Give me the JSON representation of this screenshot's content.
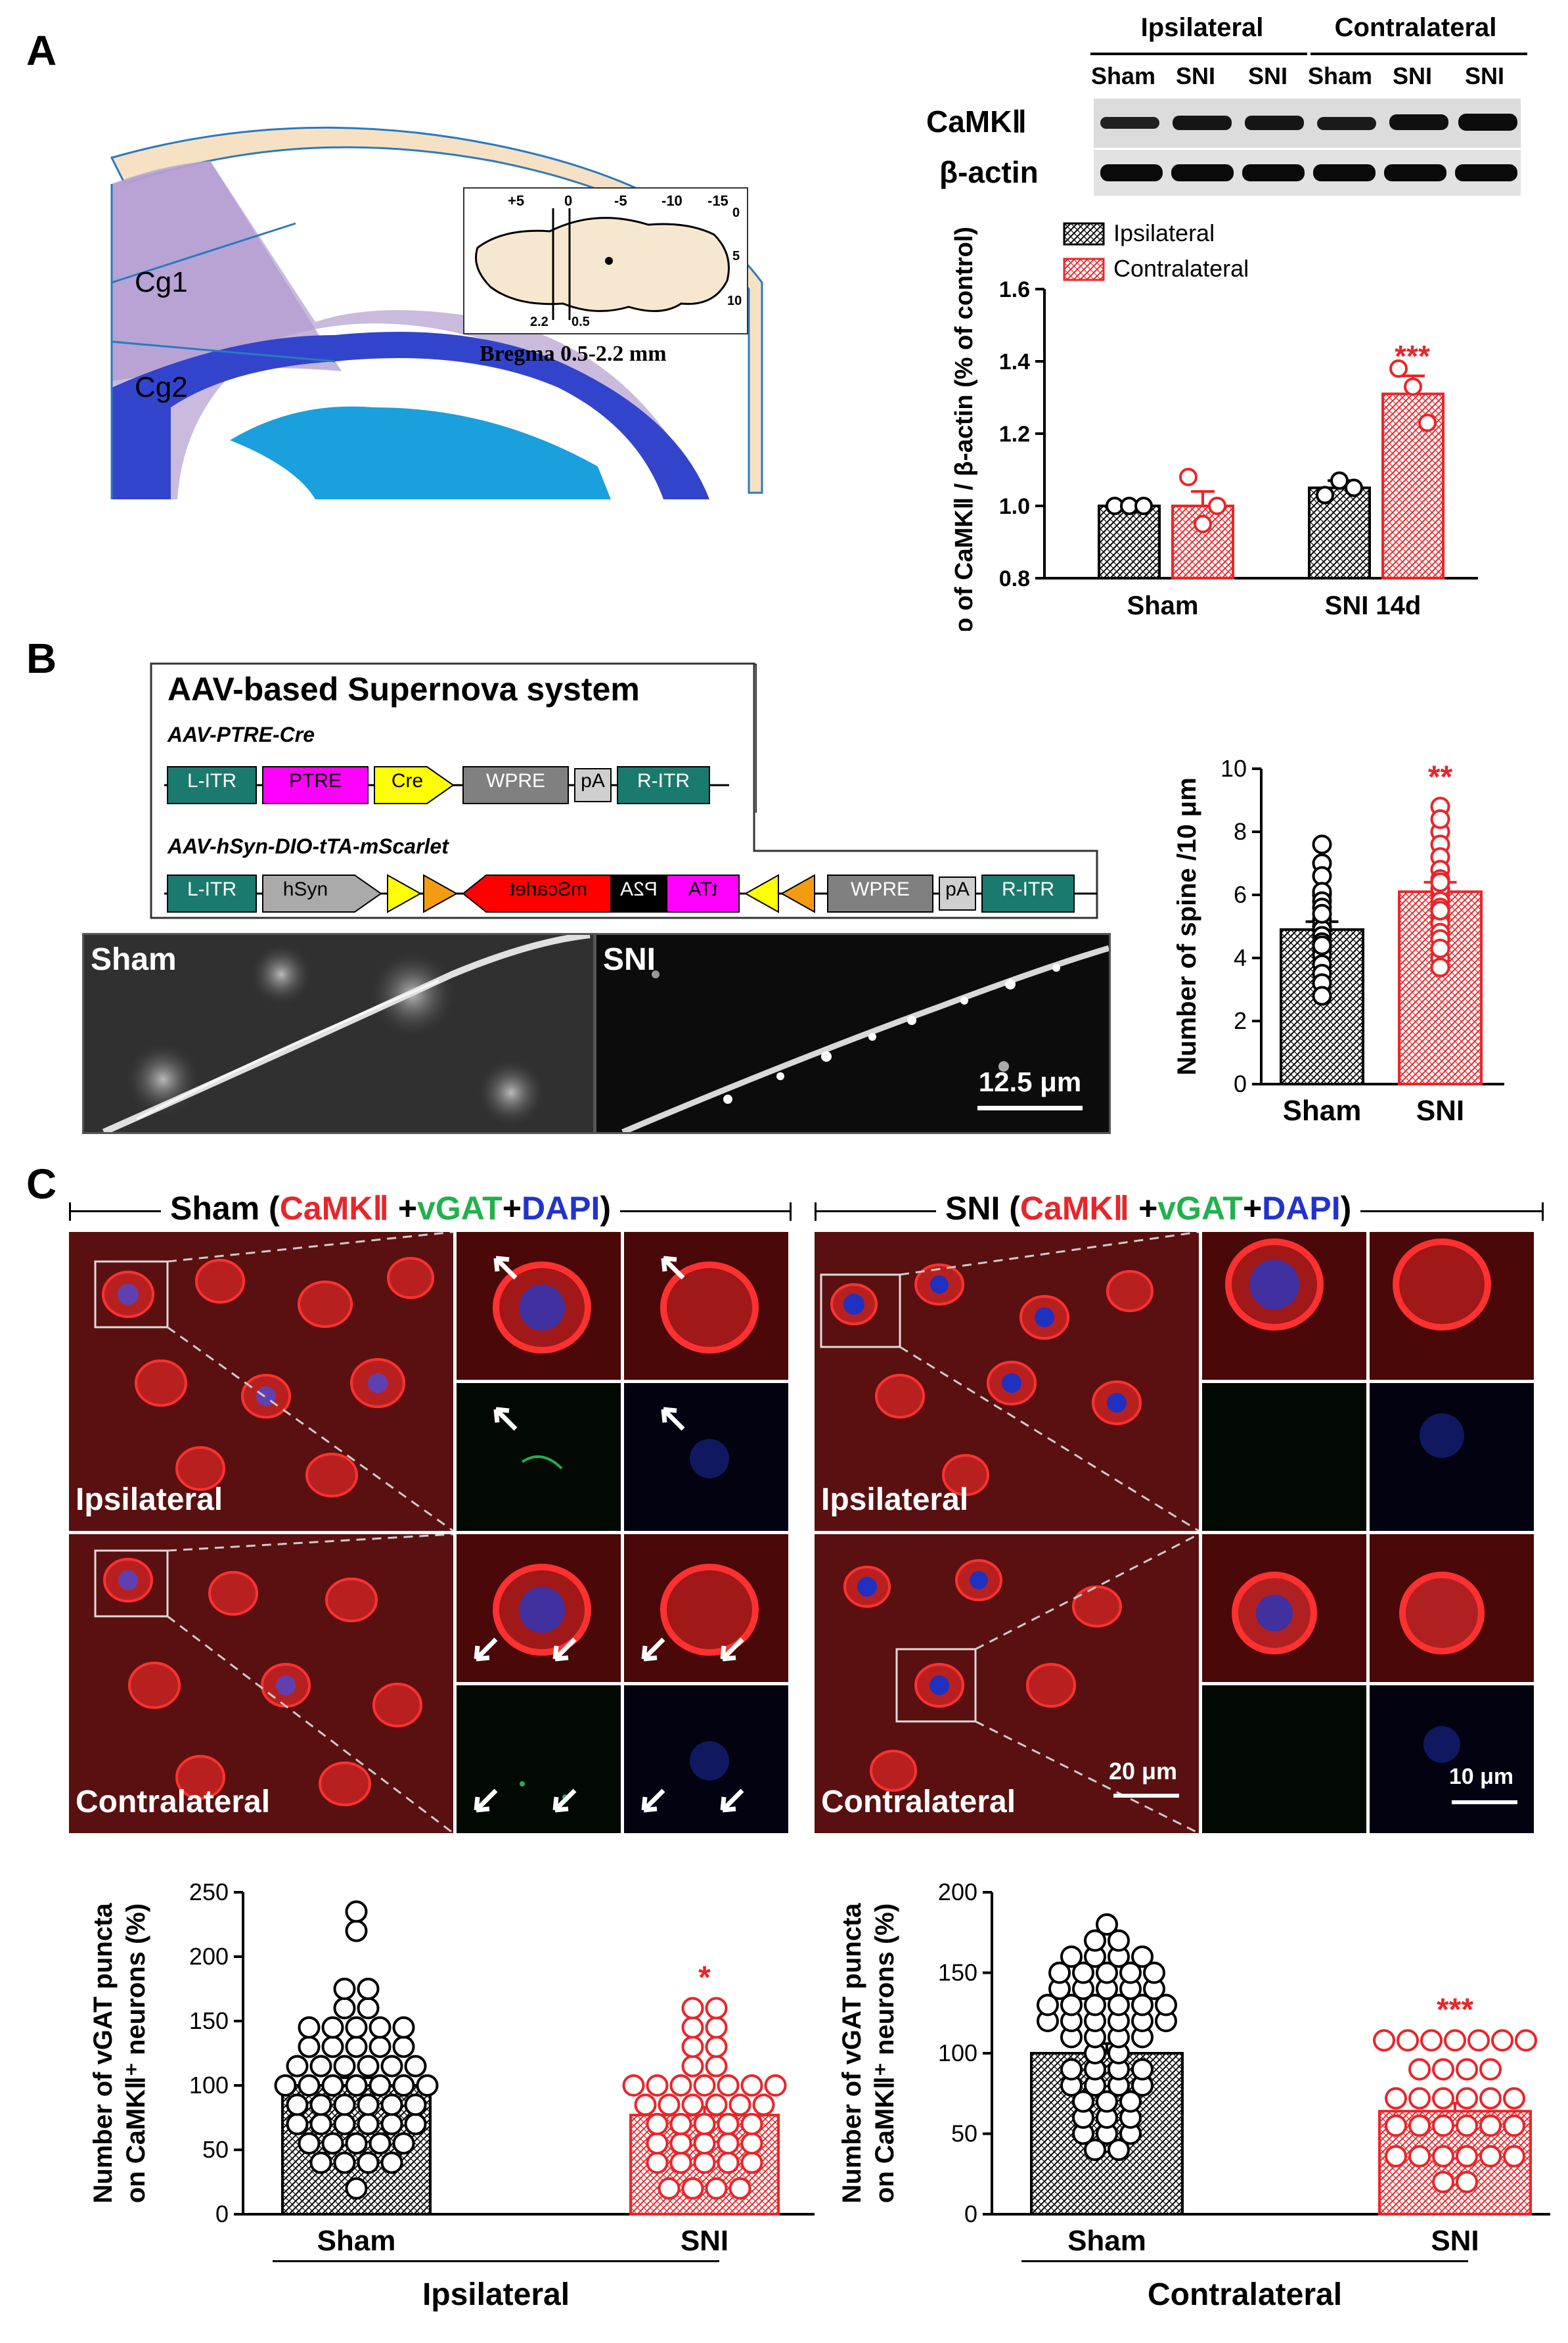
{
  "panels": {
    "a": "A",
    "b": "B",
    "c": "C"
  },
  "colors": {
    "black": "#000000",
    "red": "#e8262a",
    "green": "#22b14c",
    "blue": "#2233cc",
    "magenta": "#ff00ff",
    "yellow": "#ffff00",
    "teal": "#1b7a6e",
    "grey": "#808080",
    "orange": "#f39c12"
  },
  "panelA": {
    "regions": [
      "Cg1",
      "Cg2"
    ],
    "inset_ticks": [
      "+5",
      "0",
      "-5",
      "-10",
      "-15"
    ],
    "inset_dv": [
      "0",
      "5",
      "10"
    ],
    "inset_cuts": [
      "2.2",
      "0.5"
    ],
    "inset_caption": "Bregma 0.5-2.2 mm",
    "blot_groups": [
      "Ipsilateral",
      "Contralateral"
    ],
    "blot_lanes": [
      "Sham",
      "SNI",
      "SNI",
      "Sham",
      "SNI",
      "SNI"
    ],
    "blot_rows": [
      "CaMKⅡ",
      "β-actin"
    ]
  },
  "chart_data": [
    {
      "type": "bar",
      "panel": "A",
      "categories": [
        "Sham",
        "SNI 14d"
      ],
      "ylabel": "Ratio of CaMKⅡ / β-actin (% of control)",
      "ylim": [
        0.8,
        1.6
      ],
      "yticks": [
        "0.8",
        "1.0",
        "1.2",
        "1.4",
        "1.6"
      ],
      "legend": [
        "Ipsilateral",
        "Contralateral"
      ],
      "series": [
        {
          "name": "Ipsilateral",
          "color": "#000000",
          "values": [
            1.0,
            1.05
          ],
          "errors": [
            0.005,
            0.02
          ],
          "points": [
            [
              1.0,
              1.0,
              1.0
            ],
            [
              1.03,
              1.07,
              1.05
            ]
          ]
        },
        {
          "name": "Contralateral",
          "color": "#e8262a",
          "values": [
            1.0,
            1.31
          ],
          "errors": [
            0.04,
            0.05
          ],
          "points": [
            [
              1.08,
              0.95,
              1.0
            ],
            [
              1.38,
              1.33,
              1.23
            ]
          ]
        }
      ],
      "annotation": "***"
    },
    {
      "type": "bar",
      "panel": "B",
      "categories": [
        "Sham",
        "SNI"
      ],
      "ylabel": "Number of spine /10 μm",
      "ylim": [
        0,
        10
      ],
      "yticks": [
        "0",
        "2",
        "4",
        "6",
        "8",
        "10"
      ],
      "values": [
        4.9,
        6.1
      ],
      "errors": [
        0.25,
        0.3
      ],
      "colors": [
        "#000000",
        "#e8262a"
      ],
      "points": [
        [
          7.6,
          7.0,
          6.6,
          6.1,
          5.8,
          5.6,
          5.2,
          5.0,
          4.9,
          4.7,
          4.5,
          4.3,
          4.1,
          3.8,
          3.5,
          3.2,
          2.8,
          4.4,
          5.4,
          6.0
        ],
        [
          8.8,
          8.4,
          8.0,
          7.6,
          7.2,
          6.8,
          6.5,
          6.2,
          6.0,
          5.8,
          5.6,
          5.3,
          5.1,
          4.8,
          4.6,
          4.3,
          4.0,
          3.7,
          6.4,
          5.5
        ]
      ],
      "annotation": "**"
    },
    {
      "type": "bar",
      "panel": "C-left",
      "group": "Ipsilateral",
      "categories": [
        "Sham",
        "SNI"
      ],
      "ylabel": "Number of vGAT puncta on CaMKⅡ⁺ neurons (%)",
      "ylim": [
        0,
        250
      ],
      "yticks": [
        "0",
        "50",
        "100",
        "150",
        "200",
        "250"
      ],
      "values": [
        100,
        77
      ],
      "errors": [
        6,
        6
      ],
      "colors": [
        "#000000",
        "#e8262a"
      ],
      "points": [
        [
          235,
          220,
          175,
          175,
          160,
          160,
          145,
          145,
          145,
          145,
          145,
          130,
          130,
          130,
          130,
          130,
          115,
          115,
          115,
          115,
          115,
          115,
          100,
          100,
          100,
          100,
          100,
          100,
          100,
          85,
          85,
          85,
          85,
          85,
          85,
          70,
          70,
          70,
          70,
          70,
          70,
          55,
          55,
          55,
          55,
          55,
          40,
          40,
          40,
          40,
          20
        ],
        [
          160,
          160,
          145,
          145,
          130,
          130,
          115,
          115,
          100,
          100,
          100,
          100,
          100,
          100,
          100,
          85,
          85,
          85,
          85,
          85,
          85,
          70,
          70,
          70,
          70,
          70,
          55,
          55,
          55,
          55,
          55,
          40,
          40,
          40,
          40,
          40,
          20,
          20,
          20,
          20
        ]
      ],
      "annotation": "*"
    },
    {
      "type": "bar",
      "panel": "C-right",
      "group": "Contralateral",
      "categories": [
        "Sham",
        "SNI"
      ],
      "ylabel": "Number of vGAT puncta on CaMKⅡ⁺ neurons (%)",
      "ylim": [
        0,
        200
      ],
      "yticks": [
        "0",
        "50",
        "100",
        "150",
        "200"
      ],
      "values": [
        100,
        64
      ],
      "errors": [
        6,
        5
      ],
      "colors": [
        "#000000",
        "#e8262a"
      ],
      "points": [
        [
          180,
          170,
          170,
          160,
          160,
          160,
          160,
          150,
          150,
          150,
          150,
          150,
          140,
          140,
          140,
          140,
          140,
          130,
          130,
          130,
          130,
          130,
          130,
          120,
          120,
          120,
          120,
          120,
          120,
          110,
          110,
          110,
          110,
          100,
          100,
          90,
          90,
          90,
          90,
          80,
          80,
          80,
          80,
          70,
          70,
          70,
          60,
          60,
          60,
          50,
          50,
          50,
          40,
          40
        ],
        [
          108,
          108,
          108,
          108,
          108,
          108,
          108,
          90,
          90,
          90,
          90,
          72,
          72,
          72,
          72,
          72,
          72,
          55,
          55,
          55,
          55,
          55,
          55,
          36,
          36,
          36,
          36,
          36,
          36,
          20,
          20
        ]
      ],
      "annotation": "***"
    }
  ],
  "panelB": {
    "title": "AAV-based Supernova system",
    "construct1_name": "AAV-PTRE-Cre",
    "construct1": [
      "L-ITR",
      "PTRE",
      "Cre",
      "WPRE",
      "pA",
      "R-ITR"
    ],
    "construct2_name": "AAV-hSyn-DIO-tTA-mScarlet",
    "construct2": [
      "L-ITR",
      "hSyn",
      "mScarlet",
      "P2A",
      "tTA",
      "WPRE",
      "pA",
      "R-ITR"
    ],
    "image_labels": [
      "Sham",
      "SNI"
    ],
    "scale": "12.5 μm"
  },
  "panelC": {
    "sham_heading": {
      "prefix": "Sham (",
      "camk": "CaMKⅡ",
      "plus1": " +",
      "vgat": "vGAT",
      "plus2": "+",
      "dapi": "DAPI",
      "suffix": ")"
    },
    "sni_heading": {
      "prefix": "SNI (",
      "camk": "CaMKⅡ",
      "plus1": " +",
      "vgat": "vGAT",
      "plus2": "+",
      "dapi": "DAPI",
      "suffix": ")"
    },
    "row_labels": [
      "Ipsilateral",
      "Contralateral"
    ],
    "scale_big": "20 μm",
    "scale_small": "10 μm",
    "group_labels": [
      "Ipsilateral",
      "Contralateral"
    ]
  }
}
